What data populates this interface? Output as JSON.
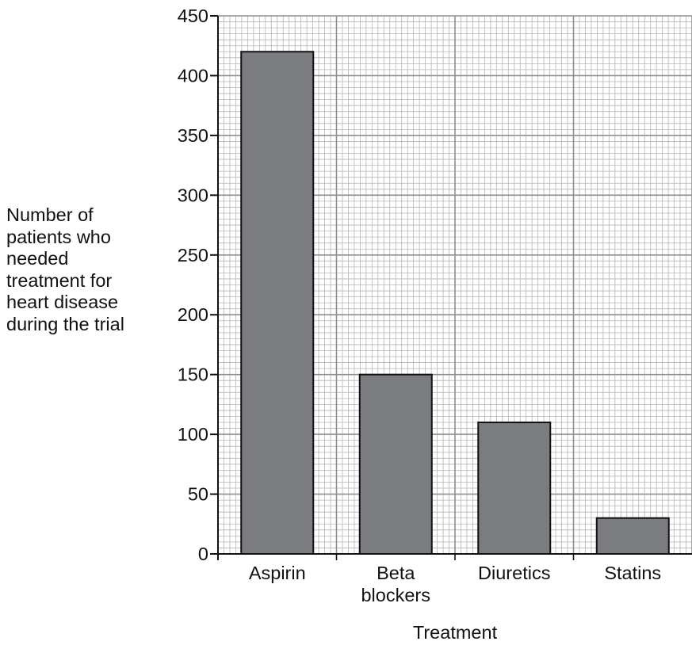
{
  "chart_data": {
    "type": "bar",
    "categories": [
      [
        "Aspirin"
      ],
      [
        "Beta",
        "blockers"
      ],
      [
        "Diuretics"
      ],
      [
        "Statins"
      ]
    ],
    "values": [
      420,
      150,
      110,
      30
    ],
    "title": "",
    "xlabel": "Treatment",
    "ylabel_lines": [
      "Number of",
      "patients who",
      "needed",
      "treatment for",
      "heart disease",
      "during the trial"
    ],
    "ylim": [
      0,
      450
    ],
    "yticks": [
      0,
      50,
      100,
      150,
      200,
      250,
      300,
      350,
      400,
      450
    ],
    "grid": true,
    "colors": {
      "bar": "#7b7c7f",
      "bar_edge": "#111111",
      "grid_minor": "#b5b5b5",
      "grid_major": "#8f8f8f",
      "axis": "#111111"
    }
  }
}
